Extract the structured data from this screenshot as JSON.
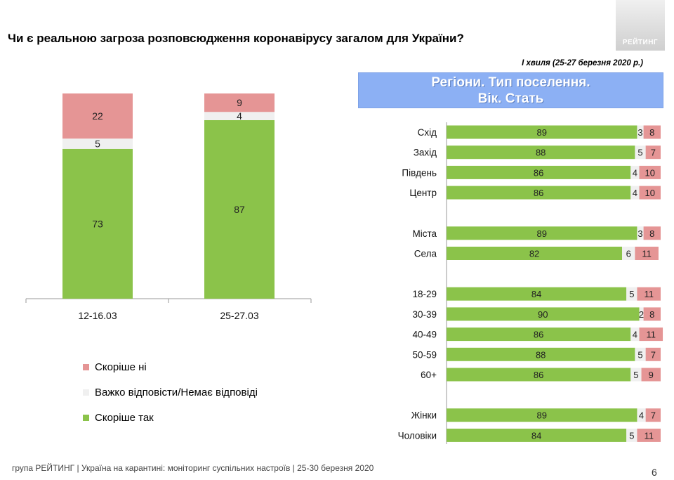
{
  "logo": {
    "text": "РЕЙТИНГ"
  },
  "title": "Чи є реальною загроза розповсюдження коронавірусу загалом для України?",
  "subtitle": "І хвиля (25-27 березня 2020 р.)",
  "banner": {
    "line1": "Регіони. Тип поселення.",
    "line2": "Вік. Стать"
  },
  "colors": {
    "yes": "#8bc34a",
    "hard": "#f0f0f0",
    "no": "#e59595",
    "banner": "#8cb0f4"
  },
  "legend": [
    {
      "key": "no",
      "label": "Скоріше  ні"
    },
    {
      "key": "hard",
      "label": "Важко відповісти/Немає відповіді"
    },
    {
      "key": "yes",
      "label": "Скоріше  так"
    }
  ],
  "footer": "група РЕЙТИНГ  |  Україна на карантині: моніторинг суспільних настроїв  |  25-30 березня 2020",
  "page_number": "6",
  "chart_data": [
    {
      "type": "bar",
      "stacked": true,
      "orientation": "vertical",
      "categories": [
        "12-16.03",
        "25-27.03"
      ],
      "series": [
        {
          "key": "yes",
          "name": "Скоріше  так",
          "values": [
            73,
            87
          ]
        },
        {
          "key": "hard",
          "name": "Важко відповісти/Немає відповіді",
          "values": [
            5,
            4
          ]
        },
        {
          "key": "no",
          "name": "Скоріше  ні",
          "values": [
            22,
            9
          ]
        }
      ],
      "ylim": [
        0,
        100
      ]
    },
    {
      "type": "bar",
      "stacked": true,
      "orientation": "horizontal",
      "groups": [
        [
          "Схід",
          "Захід",
          "Південь",
          "Центр"
        ],
        [
          "Міста",
          "Села"
        ],
        [
          "18-29",
          "30-39",
          "40-49",
          "50-59",
          "60+"
        ],
        [
          "Жінки",
          "Чоловіки"
        ]
      ],
      "categories": [
        "Схід",
        "Захід",
        "Південь",
        "Центр",
        "Міста",
        "Села",
        "18-29",
        "30-39",
        "40-49",
        "50-59",
        "60+",
        "Жінки",
        "Чоловіки"
      ],
      "series": [
        {
          "key": "yes",
          "name": "Скоріше  так",
          "values": [
            89,
            88,
            86,
            86,
            89,
            82,
            84,
            90,
            86,
            88,
            86,
            89,
            84
          ]
        },
        {
          "key": "hard",
          "name": "Важко відповісти/Немає відповіді",
          "values": [
            3,
            5,
            4,
            4,
            3,
            6,
            5,
            2,
            4,
            5,
            5,
            4,
            5
          ]
        },
        {
          "key": "no",
          "name": "Скоріше  ні",
          "values": [
            8,
            7,
            10,
            10,
            8,
            11,
            11,
            8,
            11,
            7,
            9,
            7,
            11
          ]
        }
      ],
      "xlim": [
        0,
        100
      ]
    }
  ]
}
